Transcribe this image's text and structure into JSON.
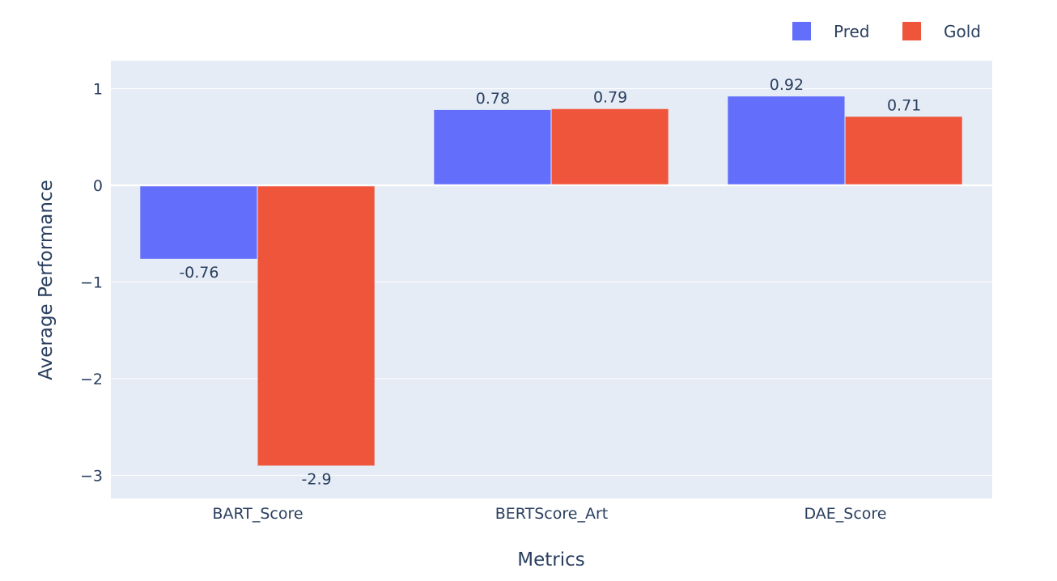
{
  "chart_data": {
    "type": "bar",
    "categories": [
      "BART_Score",
      "BERTScore_Art",
      "DAE_Score"
    ],
    "series": [
      {
        "name": "Pred",
        "values": [
          -0.76,
          0.78,
          0.92
        ],
        "labels": [
          "-0.76",
          "0.78",
          "0.92"
        ],
        "color": "#636efa"
      },
      {
        "name": "Gold",
        "values": [
          -2.9,
          0.79,
          0.71
        ],
        "labels": [
          "-2.9",
          "0.79",
          "0.71"
        ],
        "color": "#ef553b"
      }
    ],
    "xlabel": "Metrics",
    "ylabel": "Average Performance",
    "ylim": [
      -3.24,
      1.29
    ],
    "yticks": [
      1,
      0,
      -1,
      -2,
      -3
    ],
    "ytick_labels": [
      "1",
      "0",
      "−1",
      "−2",
      "−3"
    ],
    "grid": true,
    "legend": "top-right"
  }
}
